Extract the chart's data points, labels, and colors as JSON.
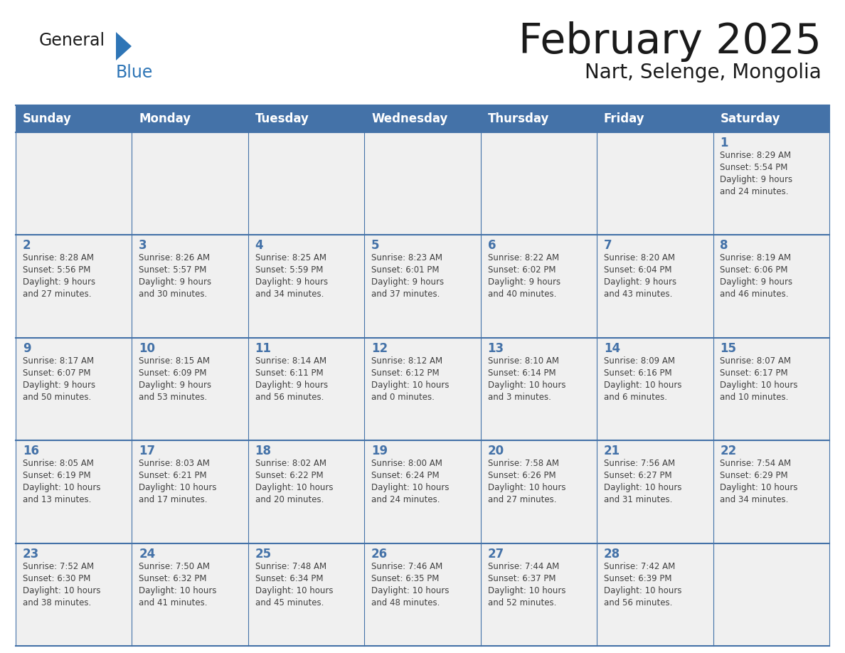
{
  "title": "February 2025",
  "subtitle": "Nart, Selenge, Mongolia",
  "days_of_week": [
    "Sunday",
    "Monday",
    "Tuesday",
    "Wednesday",
    "Thursday",
    "Friday",
    "Saturday"
  ],
  "header_bg": "#4472A8",
  "header_text_color": "#FFFFFF",
  "cell_bg_light": "#F0F0F0",
  "border_color": "#4472A8",
  "day_number_color": "#4472A8",
  "text_color": "#404040",
  "general_blue_color": "#2E75B6",
  "logo_text_color": "#1C1C1C",
  "calendar_data": [
    [
      null,
      null,
      null,
      null,
      null,
      null,
      {
        "day": 1,
        "sunrise": "8:29 AM",
        "sunset": "5:54 PM",
        "daylight": "9 hours\nand 24 minutes."
      }
    ],
    [
      {
        "day": 2,
        "sunrise": "8:28 AM",
        "sunset": "5:56 PM",
        "daylight": "9 hours\nand 27 minutes."
      },
      {
        "day": 3,
        "sunrise": "8:26 AM",
        "sunset": "5:57 PM",
        "daylight": "9 hours\nand 30 minutes."
      },
      {
        "day": 4,
        "sunrise": "8:25 AM",
        "sunset": "5:59 PM",
        "daylight": "9 hours\nand 34 minutes."
      },
      {
        "day": 5,
        "sunrise": "8:23 AM",
        "sunset": "6:01 PM",
        "daylight": "9 hours\nand 37 minutes."
      },
      {
        "day": 6,
        "sunrise": "8:22 AM",
        "sunset": "6:02 PM",
        "daylight": "9 hours\nand 40 minutes."
      },
      {
        "day": 7,
        "sunrise": "8:20 AM",
        "sunset": "6:04 PM",
        "daylight": "9 hours\nand 43 minutes."
      },
      {
        "day": 8,
        "sunrise": "8:19 AM",
        "sunset": "6:06 PM",
        "daylight": "9 hours\nand 46 minutes."
      }
    ],
    [
      {
        "day": 9,
        "sunrise": "8:17 AM",
        "sunset": "6:07 PM",
        "daylight": "9 hours\nand 50 minutes."
      },
      {
        "day": 10,
        "sunrise": "8:15 AM",
        "sunset": "6:09 PM",
        "daylight": "9 hours\nand 53 minutes."
      },
      {
        "day": 11,
        "sunrise": "8:14 AM",
        "sunset": "6:11 PM",
        "daylight": "9 hours\nand 56 minutes."
      },
      {
        "day": 12,
        "sunrise": "8:12 AM",
        "sunset": "6:12 PM",
        "daylight": "10 hours\nand 0 minutes."
      },
      {
        "day": 13,
        "sunrise": "8:10 AM",
        "sunset": "6:14 PM",
        "daylight": "10 hours\nand 3 minutes."
      },
      {
        "day": 14,
        "sunrise": "8:09 AM",
        "sunset": "6:16 PM",
        "daylight": "10 hours\nand 6 minutes."
      },
      {
        "day": 15,
        "sunrise": "8:07 AM",
        "sunset": "6:17 PM",
        "daylight": "10 hours\nand 10 minutes."
      }
    ],
    [
      {
        "day": 16,
        "sunrise": "8:05 AM",
        "sunset": "6:19 PM",
        "daylight": "10 hours\nand 13 minutes."
      },
      {
        "day": 17,
        "sunrise": "8:03 AM",
        "sunset": "6:21 PM",
        "daylight": "10 hours\nand 17 minutes."
      },
      {
        "day": 18,
        "sunrise": "8:02 AM",
        "sunset": "6:22 PM",
        "daylight": "10 hours\nand 20 minutes."
      },
      {
        "day": 19,
        "sunrise": "8:00 AM",
        "sunset": "6:24 PM",
        "daylight": "10 hours\nand 24 minutes."
      },
      {
        "day": 20,
        "sunrise": "7:58 AM",
        "sunset": "6:26 PM",
        "daylight": "10 hours\nand 27 minutes."
      },
      {
        "day": 21,
        "sunrise": "7:56 AM",
        "sunset": "6:27 PM",
        "daylight": "10 hours\nand 31 minutes."
      },
      {
        "day": 22,
        "sunrise": "7:54 AM",
        "sunset": "6:29 PM",
        "daylight": "10 hours\nand 34 minutes."
      }
    ],
    [
      {
        "day": 23,
        "sunrise": "7:52 AM",
        "sunset": "6:30 PM",
        "daylight": "10 hours\nand 38 minutes."
      },
      {
        "day": 24,
        "sunrise": "7:50 AM",
        "sunset": "6:32 PM",
        "daylight": "10 hours\nand 41 minutes."
      },
      {
        "day": 25,
        "sunrise": "7:48 AM",
        "sunset": "6:34 PM",
        "daylight": "10 hours\nand 45 minutes."
      },
      {
        "day": 26,
        "sunrise": "7:46 AM",
        "sunset": "6:35 PM",
        "daylight": "10 hours\nand 48 minutes."
      },
      {
        "day": 27,
        "sunrise": "7:44 AM",
        "sunset": "6:37 PM",
        "daylight": "10 hours\nand 52 minutes."
      },
      {
        "day": 28,
        "sunrise": "7:42 AM",
        "sunset": "6:39 PM",
        "daylight": "10 hours\nand 56 minutes."
      },
      null
    ]
  ]
}
